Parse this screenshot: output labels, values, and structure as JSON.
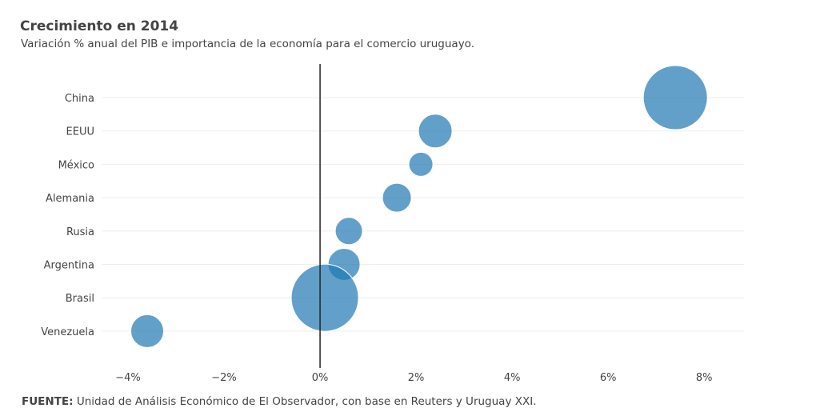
{
  "chart_data": {
    "type": "scatter",
    "title": "Crecimiento en 2014",
    "subtitle": "Variación % anual del PIB e importancia de la economía para el comercio uruguayo.",
    "xlabel": "",
    "ylabel": "",
    "xlim": [
      -4.55,
      8.83
    ],
    "xticks": [
      -4,
      -2,
      0,
      2,
      4,
      6,
      8
    ],
    "xtick_labels": [
      "−4%",
      "−2%",
      "0%",
      "2%",
      "4%",
      "6%",
      "8%"
    ],
    "grid": true,
    "categories": [
      "China",
      "EEUU",
      "México",
      "Alemania",
      "Rusia",
      "Argentina",
      "Brasil",
      "Venezuela"
    ],
    "values": [
      7.4,
      2.4,
      2.1,
      1.6,
      0.6,
      0.5,
      0.1,
      -3.6
    ],
    "bubble_size": [
      40,
      21,
      15,
      18,
      17,
      20,
      42,
      20.5
    ],
    "color": "#1f77b4"
  },
  "source": {
    "label": "FUENTE:",
    "text": " Unidad de Análisis Económico de El Observador, con base en Reuters y Uruguay XXI."
  }
}
